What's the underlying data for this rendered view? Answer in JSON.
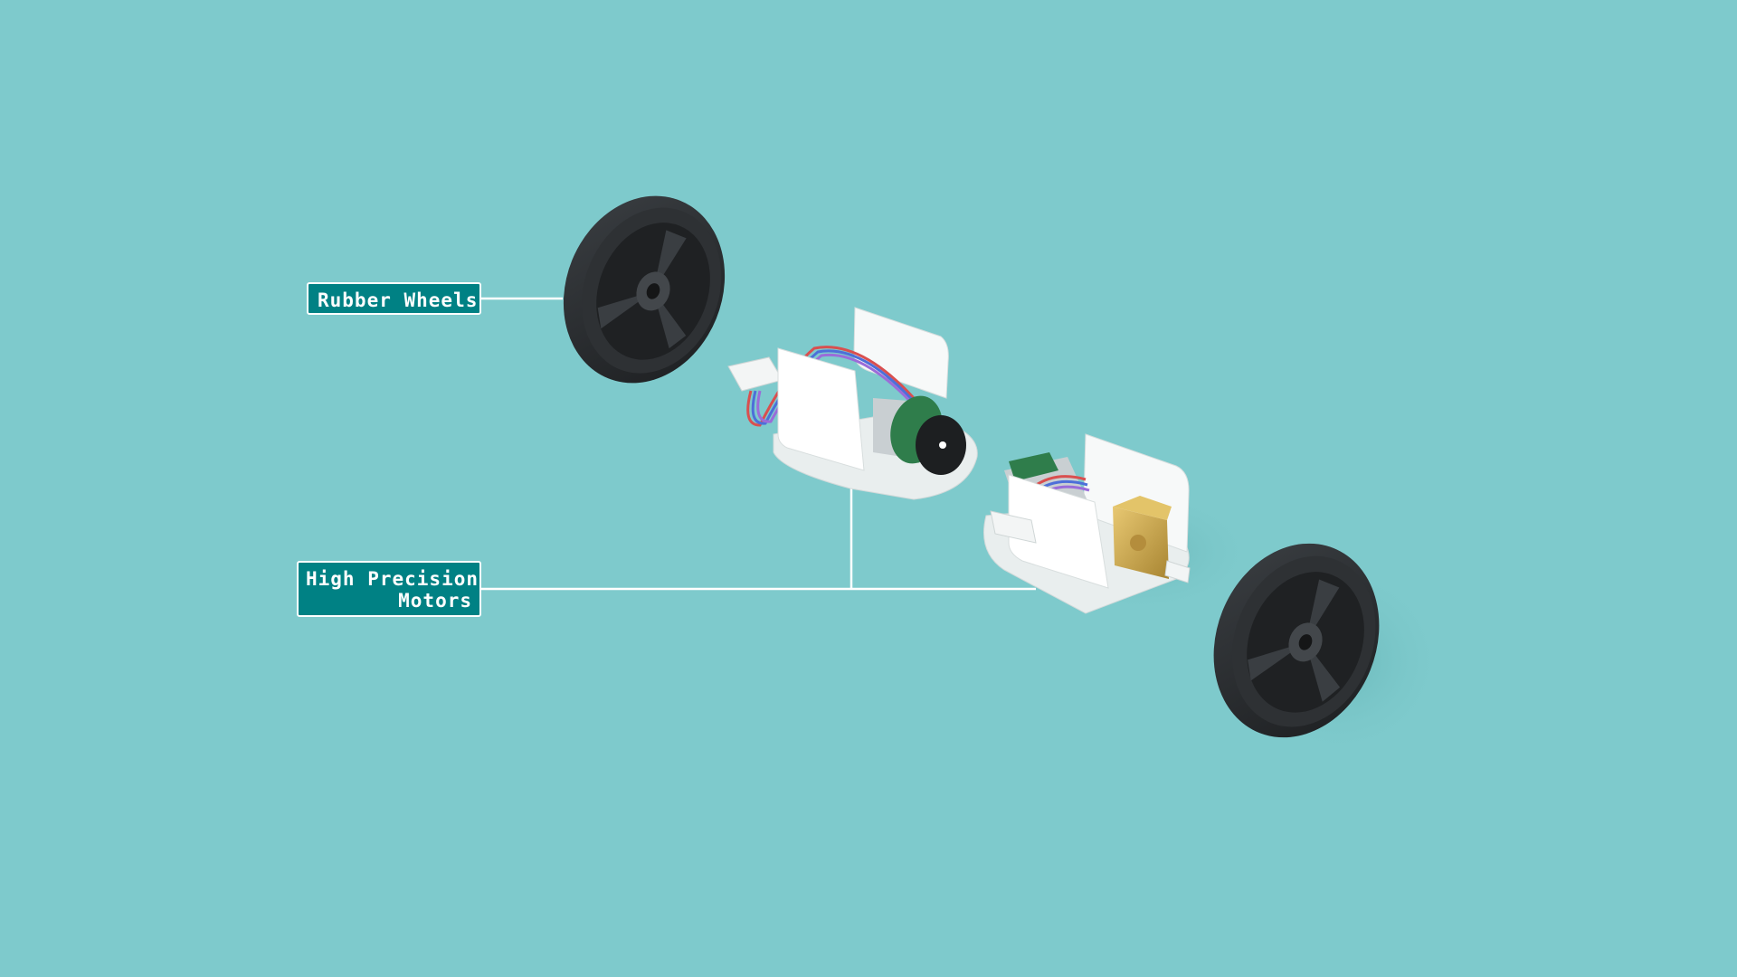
{
  "labels": {
    "rubber_wheels": "Rubber Wheels",
    "motors_line1": "High Precision",
    "motors_line2": "Motors"
  },
  "colors": {
    "background": "#7ecacc",
    "label_fill": "#008184",
    "label_border": "#ffffff",
    "leader_line": "#ffffff",
    "wheel": "#2b2e31",
    "chassis": "#f4f6f6",
    "gearbox": "#c9a54a",
    "encoder_board": "#2f7d4b"
  },
  "icons": [
    "rubber-wheel-illustration",
    "motor-assembly-illustration"
  ]
}
